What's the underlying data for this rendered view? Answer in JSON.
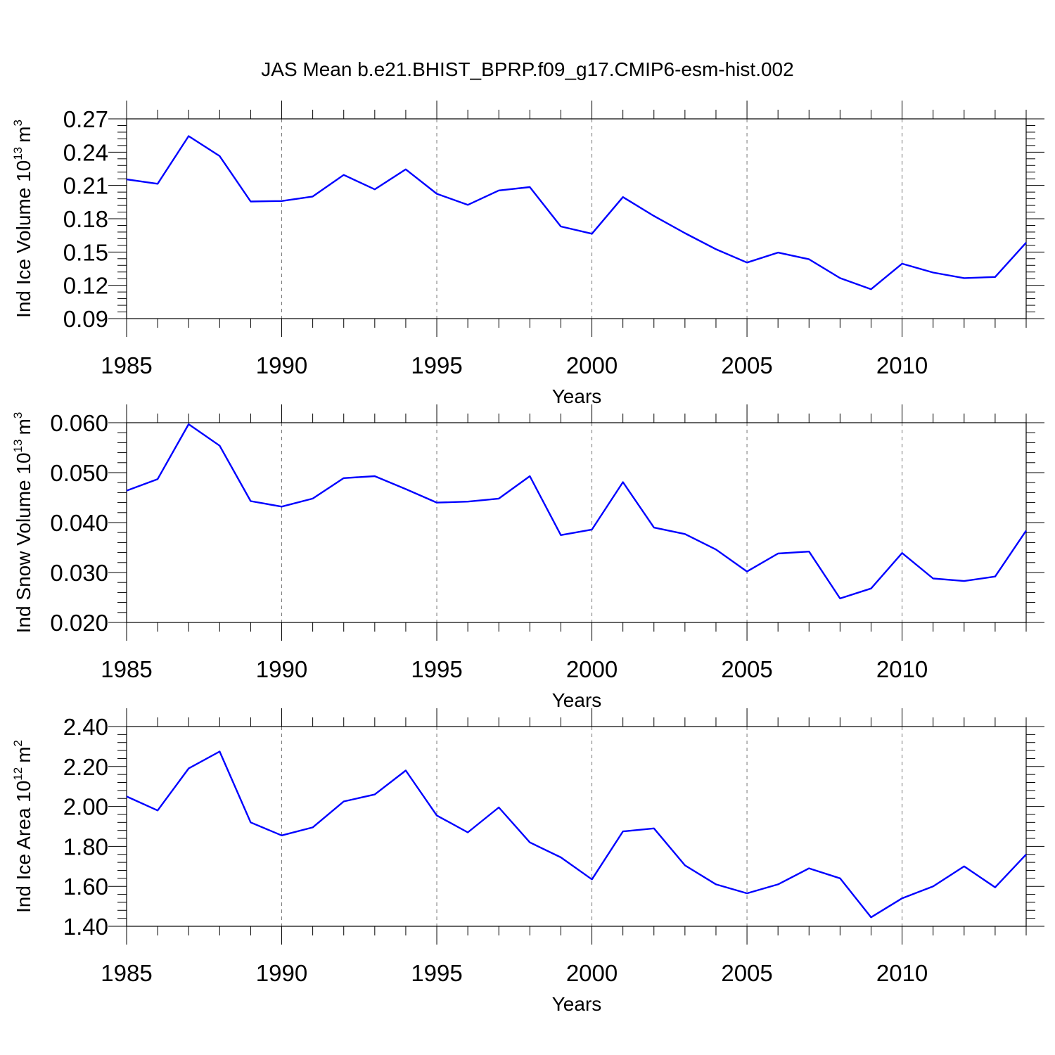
{
  "title": "JAS Mean b.e21.BHIST_BPRP.f09_g17.CMIP6-esm-hist.002",
  "colors": {
    "line": "#0000ff",
    "axis": "#000000",
    "grid": "#777777"
  },
  "chart_data": [
    {
      "type": "line",
      "xlabel": "Years",
      "ylabel": {
        "text": "Ind Ice Volume 10",
        "exponent": "13",
        "unit": "m",
        "unit_exponent": "3"
      },
      "xlim": [
        1985,
        2014
      ],
      "ylim": [
        0.09,
        0.27
      ],
      "xticks": [
        1985,
        1990,
        1995,
        2000,
        2005,
        2010
      ],
      "xtick_labels": [
        "1985",
        "1990",
        "1995",
        "2000",
        "2005",
        "2010"
      ],
      "yticks": [
        0.09,
        0.12,
        0.15,
        0.18,
        0.21,
        0.24,
        0.27
      ],
      "ytick_labels": [
        "0.09",
        "0.12",
        "0.15",
        "0.18",
        "0.21",
        "0.24",
        "0.27"
      ],
      "grid": "vertical dashed at major x ticks",
      "series": [
        {
          "name": "Ind Ice Volume",
          "x": [
            1985,
            1986,
            1987,
            1988,
            1989,
            1990,
            1991,
            1992,
            1993,
            1994,
            1995,
            1996,
            1997,
            1998,
            1999,
            2000,
            2001,
            2002,
            2003,
            2004,
            2005,
            2006,
            2007,
            2008,
            2009,
            2010,
            2011,
            2012,
            2013,
            2014
          ],
          "values": [
            0.2155,
            0.2115,
            0.2545,
            0.2365,
            0.1955,
            0.196,
            0.2,
            0.2195,
            0.2065,
            0.2245,
            0.2025,
            0.1925,
            0.2055,
            0.2085,
            0.173,
            0.1665,
            0.1995,
            0.1825,
            0.167,
            0.1525,
            0.1405,
            0.1495,
            0.1435,
            0.1265,
            0.1165,
            0.1395,
            0.1315,
            0.1265,
            0.1275,
            0.1585
          ]
        }
      ]
    },
    {
      "type": "line",
      "xlabel": "Years",
      "ylabel": {
        "text": "Ind Snow Volume 10",
        "exponent": "13",
        "unit": "m",
        "unit_exponent": "3"
      },
      "xlim": [
        1985,
        2014
      ],
      "ylim": [
        0.02,
        0.06
      ],
      "xticks": [
        1985,
        1990,
        1995,
        2000,
        2005,
        2010
      ],
      "xtick_labels": [
        "1985",
        "1990",
        "1995",
        "2000",
        "2005",
        "2010"
      ],
      "yticks": [
        0.02,
        0.03,
        0.04,
        0.05,
        0.06
      ],
      "ytick_labels": [
        "0.020",
        "0.030",
        "0.040",
        "0.050",
        "0.060"
      ],
      "grid": "vertical dashed at major x ticks",
      "series": [
        {
          "name": "Ind Snow Volume",
          "x": [
            1985,
            1986,
            1987,
            1988,
            1989,
            1990,
            1991,
            1992,
            1993,
            1994,
            1995,
            1996,
            1997,
            1998,
            1999,
            2000,
            2001,
            2002,
            2003,
            2004,
            2005,
            2006,
            2007,
            2008,
            2009,
            2010,
            2011,
            2012,
            2013,
            2014
          ],
          "values": [
            0.0464,
            0.0487,
            0.0597,
            0.0554,
            0.0443,
            0.0432,
            0.0448,
            0.0489,
            0.0493,
            0.0467,
            0.044,
            0.0442,
            0.0448,
            0.0493,
            0.0375,
            0.0386,
            0.0481,
            0.039,
            0.0377,
            0.0346,
            0.0302,
            0.0338,
            0.0342,
            0.0248,
            0.0268,
            0.0339,
            0.0288,
            0.0283,
            0.0292,
            0.0384
          ]
        }
      ]
    },
    {
      "type": "line",
      "xlabel": "Years",
      "ylabel": {
        "text": "Ind Ice Area 10",
        "exponent": "12",
        "unit": "m",
        "unit_exponent": "2"
      },
      "xlim": [
        1985,
        2014
      ],
      "ylim": [
        1.4,
        2.4
      ],
      "xticks": [
        1985,
        1990,
        1995,
        2000,
        2005,
        2010
      ],
      "xtick_labels": [
        "1985",
        "1990",
        "1995",
        "2000",
        "2005",
        "2010"
      ],
      "yticks": [
        1.4,
        1.6,
        1.8,
        2.0,
        2.2,
        2.4
      ],
      "ytick_labels": [
        "1.40",
        "1.60",
        "1.80",
        "2.00",
        "2.20",
        "2.40"
      ],
      "grid": "vertical dashed at major x ticks",
      "series": [
        {
          "name": "Ind Ice Area",
          "x": [
            1985,
            1986,
            1987,
            1988,
            1989,
            1990,
            1991,
            1992,
            1993,
            1994,
            1995,
            1996,
            1997,
            1998,
            1999,
            2000,
            2001,
            2002,
            2003,
            2004,
            2005,
            2006,
            2007,
            2008,
            2009,
            2010,
            2011,
            2012,
            2013,
            2014
          ],
          "values": [
            2.05,
            1.98,
            2.19,
            2.275,
            1.92,
            1.855,
            1.895,
            2.025,
            2.06,
            2.18,
            1.955,
            1.87,
            1.995,
            1.82,
            1.745,
            1.635,
            1.875,
            1.89,
            1.705,
            1.61,
            1.565,
            1.61,
            1.69,
            1.64,
            1.445,
            1.54,
            1.6,
            1.7,
            1.595,
            1.76
          ]
        }
      ]
    }
  ]
}
